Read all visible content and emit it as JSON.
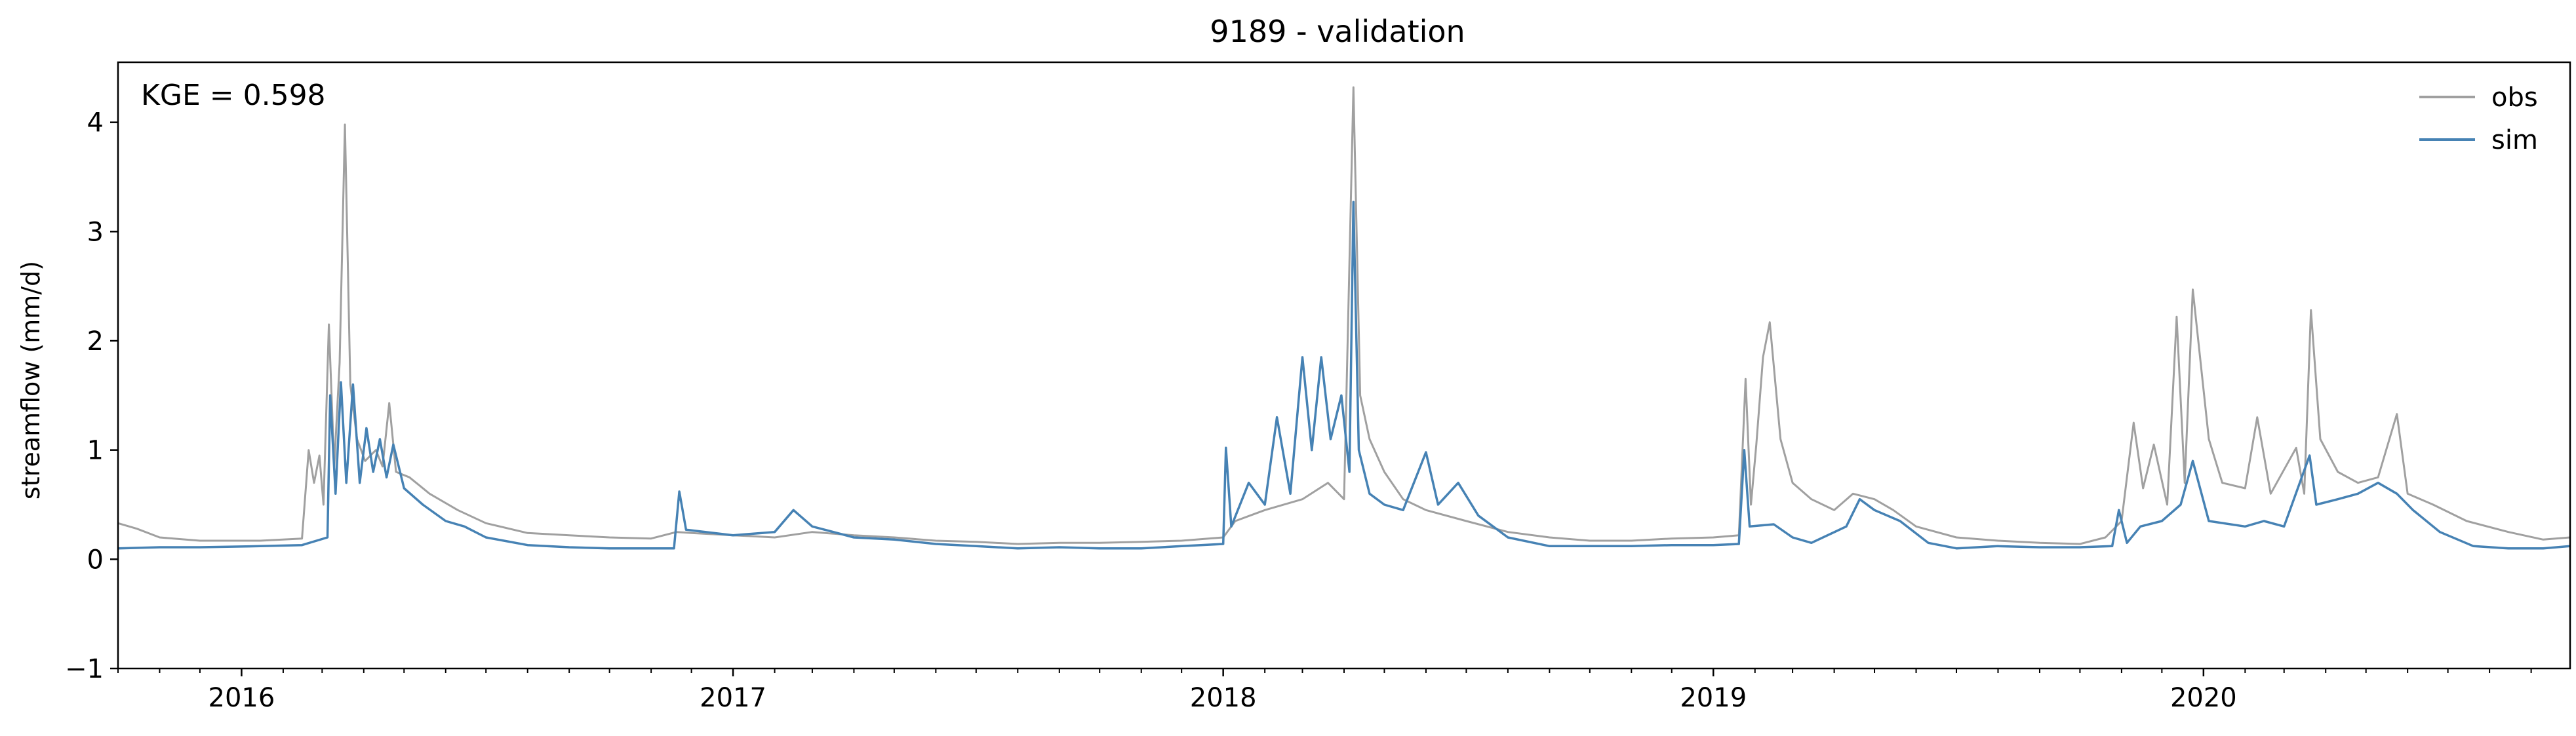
{
  "chart_data": {
    "type": "line",
    "title": "9189 - validation",
    "xlabel": "",
    "ylabel": "streamflow (mm/d)",
    "annotation": "KGE = 0.598",
    "ylim": [
      -1,
      4.55
    ],
    "xlim": [
      "2015-10-01",
      "2020-09-30"
    ],
    "x_ticks": [
      {
        "date": "2016-01-01",
        "label": "2016"
      },
      {
        "date": "2017-01-01",
        "label": "2017"
      },
      {
        "date": "2018-01-01",
        "label": "2018"
      },
      {
        "date": "2019-01-01",
        "label": "2019"
      },
      {
        "date": "2020-01-01",
        "label": "2020"
      }
    ],
    "y_ticks": [
      {
        "value": -1,
        "label": "−1"
      },
      {
        "value": 0,
        "label": "0"
      },
      {
        "value": 1,
        "label": "1"
      },
      {
        "value": 2,
        "label": "2"
      },
      {
        "value": 3,
        "label": "3"
      },
      {
        "value": 4,
        "label": "4"
      }
    ],
    "legend_position": "top-right",
    "grid": false,
    "series": [
      {
        "name": "obs",
        "color": "#a0a0a0",
        "points": [
          [
            "2015-10-01",
            0.33
          ],
          [
            "2015-10-15",
            0.28
          ],
          [
            "2015-11-01",
            0.2
          ],
          [
            "2015-12-01",
            0.17
          ],
          [
            "2016-01-15",
            0.17
          ],
          [
            "2016-02-15",
            0.19
          ],
          [
            "2016-02-20",
            1.0
          ],
          [
            "2016-02-24",
            0.7
          ],
          [
            "2016-02-28",
            0.95
          ],
          [
            "2016-03-02",
            0.5
          ],
          [
            "2016-03-06",
            2.15
          ],
          [
            "2016-03-10",
            0.85
          ],
          [
            "2016-03-14",
            1.8
          ],
          [
            "2016-03-18",
            3.98
          ],
          [
            "2016-03-22",
            1.6
          ],
          [
            "2016-03-27",
            1.1
          ],
          [
            "2016-04-02",
            0.9
          ],
          [
            "2016-04-10",
            1.0
          ],
          [
            "2016-04-15",
            0.85
          ],
          [
            "2016-04-20",
            1.43
          ],
          [
            "2016-04-25",
            0.8
          ],
          [
            "2016-05-05",
            0.75
          ],
          [
            "2016-05-20",
            0.6
          ],
          [
            "2016-06-10",
            0.45
          ],
          [
            "2016-07-01",
            0.33
          ],
          [
            "2016-08-01",
            0.24
          ],
          [
            "2016-09-01",
            0.22
          ],
          [
            "2016-10-01",
            0.2
          ],
          [
            "2016-11-01",
            0.19
          ],
          [
            "2016-11-20",
            0.25
          ],
          [
            "2016-12-01",
            0.24
          ],
          [
            "2017-01-01",
            0.22
          ],
          [
            "2017-02-01",
            0.2
          ],
          [
            "2017-03-01",
            0.25
          ],
          [
            "2017-04-01",
            0.22
          ],
          [
            "2017-05-01",
            0.2
          ],
          [
            "2017-06-01",
            0.17
          ],
          [
            "2017-07-01",
            0.16
          ],
          [
            "2017-08-01",
            0.14
          ],
          [
            "2017-09-01",
            0.15
          ],
          [
            "2017-10-01",
            0.15
          ],
          [
            "2017-11-01",
            0.16
          ],
          [
            "2017-12-01",
            0.17
          ],
          [
            "2018-01-01",
            0.2
          ],
          [
            "2018-01-10",
            0.35
          ],
          [
            "2018-02-01",
            0.45
          ],
          [
            "2018-03-01",
            0.55
          ],
          [
            "2018-03-20",
            0.7
          ],
          [
            "2018-04-01",
            0.55
          ],
          [
            "2018-04-08",
            4.32
          ],
          [
            "2018-04-13",
            1.5
          ],
          [
            "2018-04-20",
            1.1
          ],
          [
            "2018-05-01",
            0.8
          ],
          [
            "2018-05-15",
            0.55
          ],
          [
            "2018-06-01",
            0.45
          ],
          [
            "2018-07-01",
            0.35
          ],
          [
            "2018-08-01",
            0.25
          ],
          [
            "2018-09-01",
            0.2
          ],
          [
            "2018-10-01",
            0.17
          ],
          [
            "2018-11-01",
            0.17
          ],
          [
            "2018-12-01",
            0.19
          ],
          [
            "2019-01-01",
            0.2
          ],
          [
            "2019-01-20",
            0.22
          ],
          [
            "2019-01-25",
            1.65
          ],
          [
            "2019-01-29",
            0.5
          ],
          [
            "2019-02-02",
            1.05
          ],
          [
            "2019-02-07",
            1.85
          ],
          [
            "2019-02-12",
            2.17
          ],
          [
            "2019-02-20",
            1.1
          ],
          [
            "2019-03-01",
            0.7
          ],
          [
            "2019-03-15",
            0.55
          ],
          [
            "2019-04-01",
            0.45
          ],
          [
            "2019-04-15",
            0.6
          ],
          [
            "2019-05-01",
            0.55
          ],
          [
            "2019-05-15",
            0.45
          ],
          [
            "2019-06-01",
            0.3
          ],
          [
            "2019-07-01",
            0.2
          ],
          [
            "2019-08-01",
            0.17
          ],
          [
            "2019-09-01",
            0.15
          ],
          [
            "2019-10-01",
            0.14
          ],
          [
            "2019-10-20",
            0.2
          ],
          [
            "2019-11-01",
            0.35
          ],
          [
            "2019-11-10",
            1.25
          ],
          [
            "2019-11-17",
            0.65
          ],
          [
            "2019-11-25",
            1.05
          ],
          [
            "2019-12-05",
            0.5
          ],
          [
            "2019-12-12",
            2.22
          ],
          [
            "2019-12-18",
            0.7
          ],
          [
            "2019-12-24",
            2.47
          ],
          [
            "2020-01-05",
            1.1
          ],
          [
            "2020-01-15",
            0.7
          ],
          [
            "2020-02-01",
            0.65
          ],
          [
            "2020-02-10",
            1.3
          ],
          [
            "2020-02-20",
            0.6
          ],
          [
            "2020-03-10",
            1.02
          ],
          [
            "2020-03-16",
            0.6
          ],
          [
            "2020-03-21",
            2.28
          ],
          [
            "2020-03-28",
            1.1
          ],
          [
            "2020-04-10",
            0.8
          ],
          [
            "2020-04-25",
            0.7
          ],
          [
            "2020-05-10",
            0.75
          ],
          [
            "2020-05-24",
            1.33
          ],
          [
            "2020-06-01",
            0.6
          ],
          [
            "2020-06-20",
            0.5
          ],
          [
            "2020-07-15",
            0.35
          ],
          [
            "2020-08-15",
            0.25
          ],
          [
            "2020-09-10",
            0.18
          ],
          [
            "2020-09-30",
            0.2
          ]
        ]
      },
      {
        "name": "sim",
        "color": "#4682b4",
        "points": [
          [
            "2015-10-01",
            0.1
          ],
          [
            "2015-11-01",
            0.11
          ],
          [
            "2015-12-01",
            0.11
          ],
          [
            "2016-01-15",
            0.12
          ],
          [
            "2016-02-15",
            0.13
          ],
          [
            "2016-03-05",
            0.2
          ],
          [
            "2016-03-07",
            1.5
          ],
          [
            "2016-03-11",
            0.6
          ],
          [
            "2016-03-15",
            1.62
          ],
          [
            "2016-03-19",
            0.7
          ],
          [
            "2016-03-24",
            1.6
          ],
          [
            "2016-03-29",
            0.7
          ],
          [
            "2016-04-03",
            1.2
          ],
          [
            "2016-04-08",
            0.8
          ],
          [
            "2016-04-13",
            1.1
          ],
          [
            "2016-04-18",
            0.75
          ],
          [
            "2016-04-23",
            1.05
          ],
          [
            "2016-05-01",
            0.65
          ],
          [
            "2016-05-15",
            0.5
          ],
          [
            "2016-06-01",
            0.35
          ],
          [
            "2016-06-15",
            0.3
          ],
          [
            "2016-07-01",
            0.2
          ],
          [
            "2016-08-01",
            0.13
          ],
          [
            "2016-09-01",
            0.11
          ],
          [
            "2016-10-01",
            0.1
          ],
          [
            "2016-11-18",
            0.1
          ],
          [
            "2016-11-22",
            0.62
          ],
          [
            "2016-11-27",
            0.27
          ],
          [
            "2017-01-01",
            0.22
          ],
          [
            "2017-02-01",
            0.25
          ],
          [
            "2017-02-15",
            0.45
          ],
          [
            "2017-03-01",
            0.3
          ],
          [
            "2017-04-01",
            0.2
          ],
          [
            "2017-05-01",
            0.18
          ],
          [
            "2017-06-01",
            0.14
          ],
          [
            "2017-07-01",
            0.12
          ],
          [
            "2017-08-01",
            0.1
          ],
          [
            "2017-09-01",
            0.11
          ],
          [
            "2017-10-01",
            0.1
          ],
          [
            "2017-11-01",
            0.1
          ],
          [
            "2017-12-01",
            0.12
          ],
          [
            "2018-01-01",
            0.14
          ],
          [
            "2018-01-03",
            1.02
          ],
          [
            "2018-01-07",
            0.3
          ],
          [
            "2018-01-20",
            0.7
          ],
          [
            "2018-02-01",
            0.5
          ],
          [
            "2018-02-10",
            1.3
          ],
          [
            "2018-02-20",
            0.6
          ],
          [
            "2018-03-01",
            1.85
          ],
          [
            "2018-03-08",
            1.0
          ],
          [
            "2018-03-15",
            1.85
          ],
          [
            "2018-03-22",
            1.1
          ],
          [
            "2018-03-30",
            1.5
          ],
          [
            "2018-04-05",
            0.8
          ],
          [
            "2018-04-08",
            3.27
          ],
          [
            "2018-04-12",
            1.0
          ],
          [
            "2018-04-20",
            0.6
          ],
          [
            "2018-05-01",
            0.5
          ],
          [
            "2018-05-15",
            0.45
          ],
          [
            "2018-06-01",
            0.98
          ],
          [
            "2018-06-10",
            0.5
          ],
          [
            "2018-06-25",
            0.7
          ],
          [
            "2018-07-10",
            0.4
          ],
          [
            "2018-08-01",
            0.2
          ],
          [
            "2018-09-01",
            0.12
          ],
          [
            "2018-10-01",
            0.12
          ],
          [
            "2018-11-01",
            0.12
          ],
          [
            "2018-12-01",
            0.13
          ],
          [
            "2019-01-01",
            0.13
          ],
          [
            "2019-01-20",
            0.14
          ],
          [
            "2019-01-24",
            1.0
          ],
          [
            "2019-01-28",
            0.3
          ],
          [
            "2019-02-15",
            0.32
          ],
          [
            "2019-03-01",
            0.2
          ],
          [
            "2019-03-15",
            0.15
          ],
          [
            "2019-04-10",
            0.3
          ],
          [
            "2019-04-20",
            0.55
          ],
          [
            "2019-05-01",
            0.45
          ],
          [
            "2019-05-20",
            0.35
          ],
          [
            "2019-06-10",
            0.15
          ],
          [
            "2019-07-01",
            0.1
          ],
          [
            "2019-08-01",
            0.12
          ],
          [
            "2019-09-01",
            0.11
          ],
          [
            "2019-10-01",
            0.11
          ],
          [
            "2019-10-25",
            0.12
          ],
          [
            "2019-10-30",
            0.45
          ],
          [
            "2019-11-05",
            0.15
          ],
          [
            "2019-11-15",
            0.3
          ],
          [
            "2019-12-01",
            0.35
          ],
          [
            "2019-12-15",
            0.5
          ],
          [
            "2019-12-24",
            0.9
          ],
          [
            "2020-01-05",
            0.35
          ],
          [
            "2020-02-01",
            0.3
          ],
          [
            "2020-02-15",
            0.35
          ],
          [
            "2020-03-01",
            0.3
          ],
          [
            "2020-03-20",
            0.95
          ],
          [
            "2020-03-25",
            0.5
          ],
          [
            "2020-04-10",
            0.55
          ],
          [
            "2020-04-25",
            0.6
          ],
          [
            "2020-05-10",
            0.7
          ],
          [
            "2020-05-24",
            0.6
          ],
          [
            "2020-06-05",
            0.45
          ],
          [
            "2020-06-25",
            0.25
          ],
          [
            "2020-07-20",
            0.12
          ],
          [
            "2020-08-15",
            0.1
          ],
          [
            "2020-09-10",
            0.1
          ],
          [
            "2020-09-30",
            0.12
          ]
        ]
      }
    ]
  }
}
